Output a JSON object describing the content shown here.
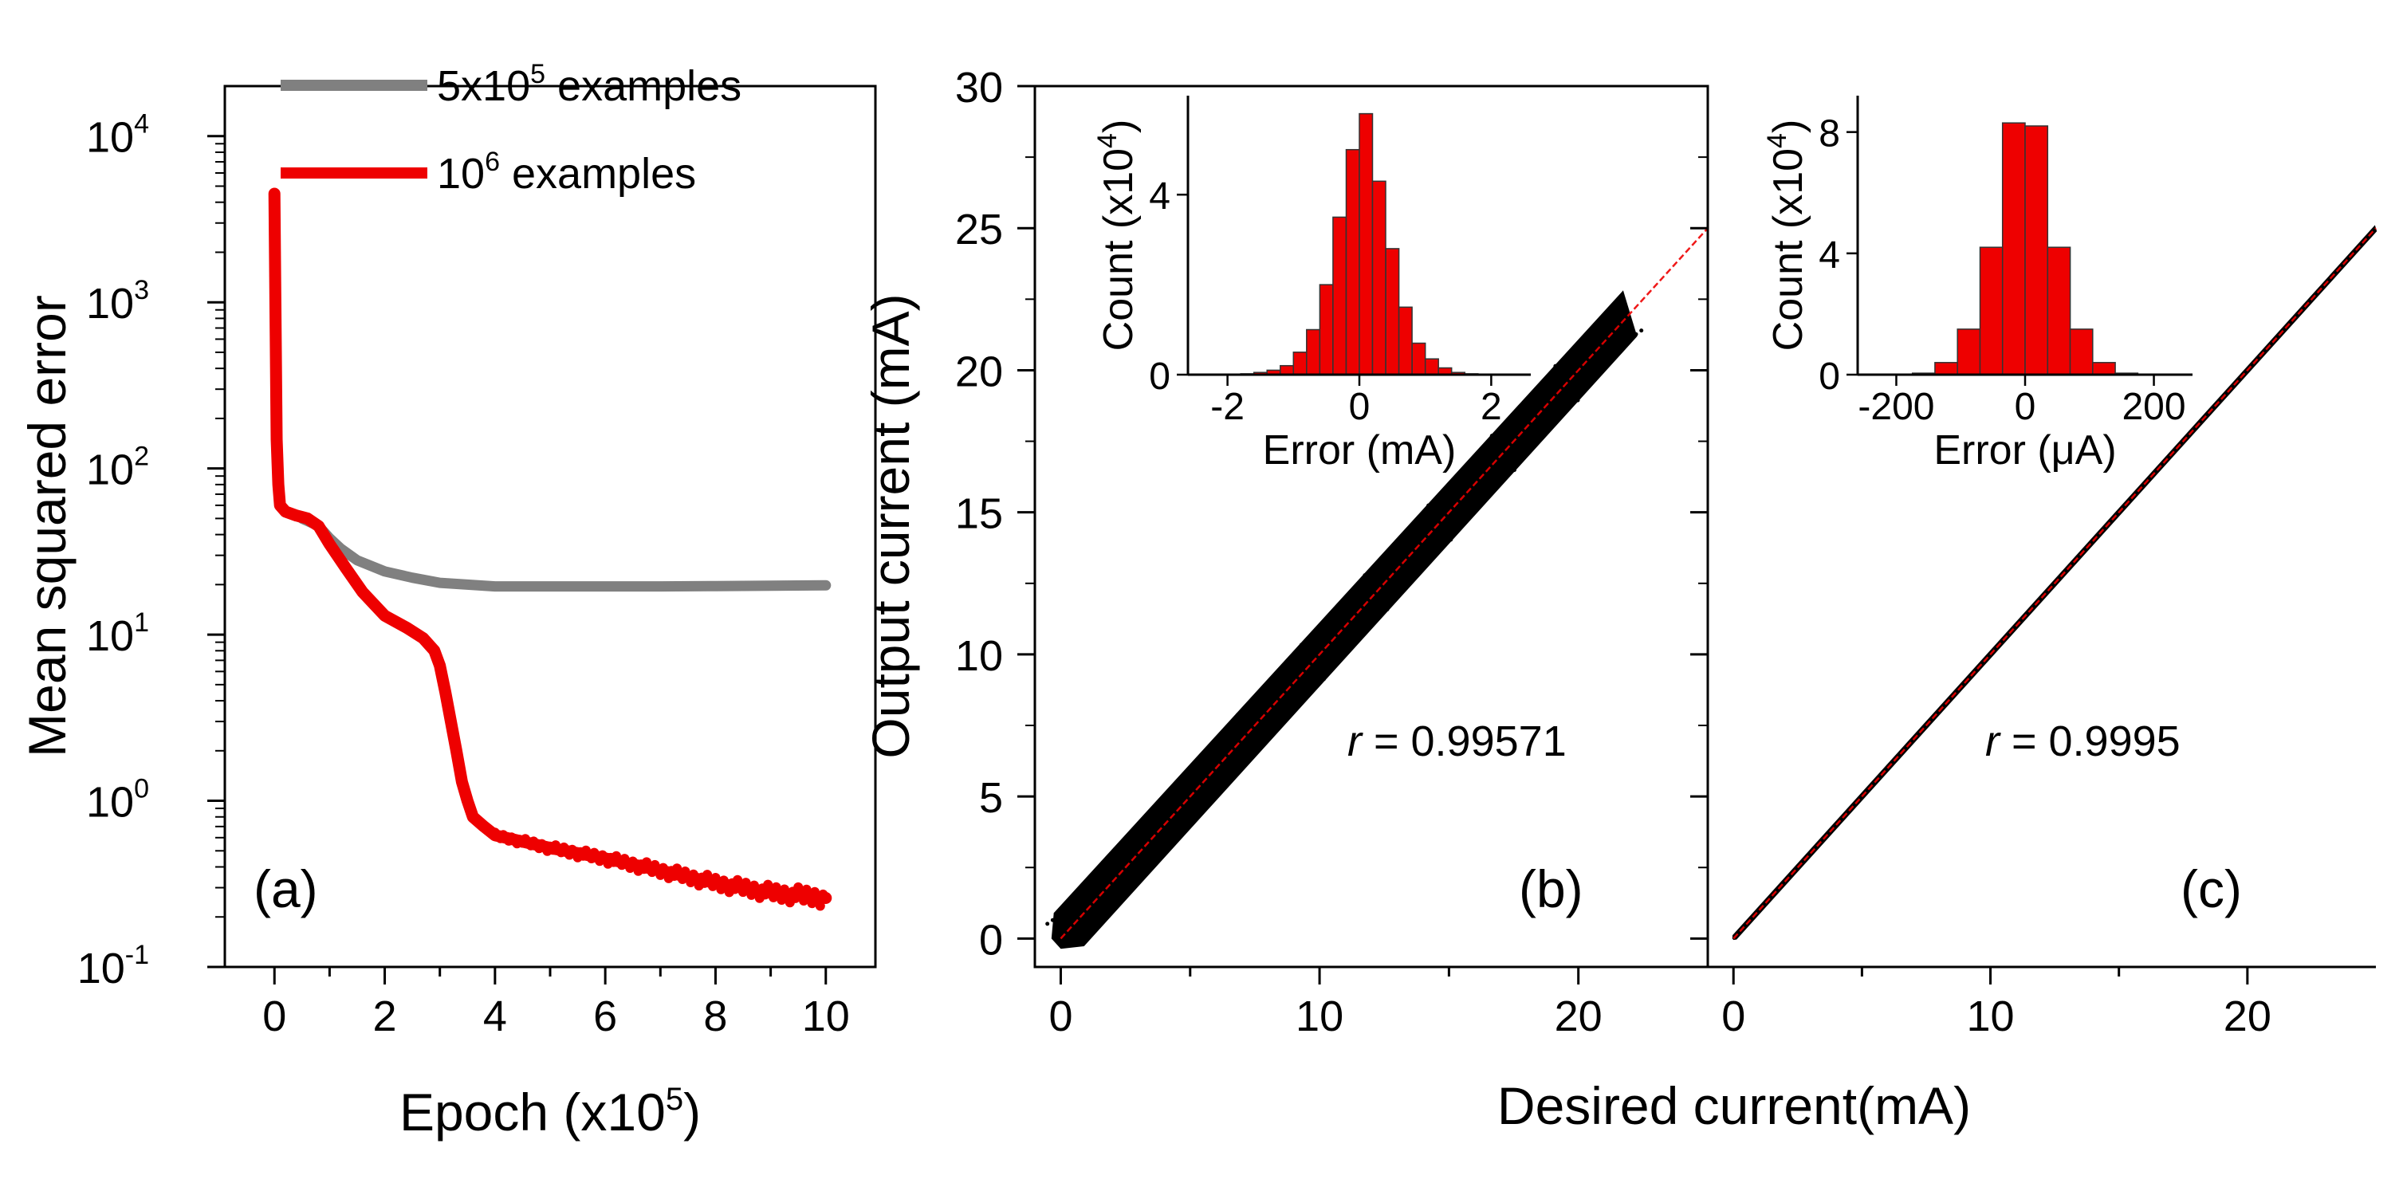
{
  "figure": {
    "background": "#ffffff",
    "axis_color": "#000000",
    "gray_series_color": "#808080",
    "red_series_color": "#ee0000",
    "scatter_color": "#000000",
    "hist_fill_color": "#ee0000",
    "hist_edge_color": "#333333"
  },
  "chart_data": [
    {
      "id": "a",
      "type": "line",
      "panel_label": "(a)",
      "title": "",
      "xlabel": "Epoch (x10",
      "xlabel_sup": "5",
      "xlabel_close": ")",
      "ylabel": "Mean squared error",
      "xlim": [
        -0.9,
        10.9
      ],
      "ylim": [
        0.1,
        20000
      ],
      "yscale": "log",
      "xticks": [
        0,
        2,
        4,
        6,
        8,
        10
      ],
      "xtick_labels": [
        "0",
        "2",
        "4",
        "6",
        "8",
        "10"
      ],
      "yticks": [
        0.1,
        1,
        10,
        100,
        1000,
        10000
      ],
      "ytick_labels": [
        {
          "base": "10",
          "exp": "-1"
        },
        {
          "base": "10",
          "exp": "0"
        },
        {
          "base": "10",
          "exp": "1"
        },
        {
          "base": "10",
          "exp": "2"
        },
        {
          "base": "10",
          "exp": "3"
        },
        {
          "base": "10",
          "exp": "4"
        }
      ],
      "legend": [
        {
          "text": "5x10",
          "sup": "5",
          "suffix": " examples",
          "color": "#808080"
        },
        {
          "text": "10",
          "sup": "6",
          "suffix": " examples",
          "color": "#ee0000"
        }
      ],
      "series": [
        {
          "name": "5x10^5 examples",
          "color": "#808080",
          "x": [
            0.5,
            0.8,
            1.0,
            1.2,
            1.5,
            2.0,
            2.5,
            3.0,
            3.5,
            4.0,
            5.0,
            6.0,
            7.0,
            8.0,
            9.0,
            10.0
          ],
          "y": [
            50,
            45,
            38,
            33,
            28,
            24,
            22,
            20.5,
            20,
            19.5,
            19.5,
            19.5,
            19.5,
            19.6,
            19.7,
            19.8
          ]
        },
        {
          "name": "10^6 examples",
          "color": "#ee0000",
          "x": [
            0.0,
            0.02,
            0.04,
            0.07,
            0.1,
            0.2,
            0.4,
            0.6,
            0.8,
            1.0,
            1.3,
            1.6,
            2.0,
            2.4,
            2.7,
            2.9,
            3.0,
            3.1,
            3.2,
            3.3,
            3.4,
            3.5,
            3.6,
            3.8,
            4.0,
            5.0,
            6.0,
            7.0,
            8.0,
            9.0,
            10.0
          ],
          "y": [
            4500,
            800,
            150,
            80,
            60,
            55,
            52,
            50,
            45,
            35,
            25,
            18,
            13,
            11,
            9.5,
            8,
            6.5,
            4.5,
            3,
            2,
            1.3,
            1.0,
            0.8,
            0.7,
            0.62,
            0.52,
            0.45,
            0.38,
            0.32,
            0.28,
            0.26
          ]
        }
      ]
    },
    {
      "id": "b",
      "type": "scatter",
      "panel_label": "(b)",
      "ylabel": "Output current (mA)",
      "xlim": [
        -1,
        25
      ],
      "ylim": [
        -1,
        30
      ],
      "xticks": [
        0,
        10,
        20
      ],
      "xtick_labels": [
        "0",
        "10",
        "20"
      ],
      "yticks": [
        0,
        5,
        10,
        15,
        20,
        25,
        30
      ],
      "ytick_labels": [
        "0",
        "5",
        "10",
        "15",
        "20",
        "25",
        "30"
      ],
      "scatter_band": {
        "x_start": 0,
        "x_end": 22,
        "half_width": 0.9
      },
      "fit_line": {
        "x": [
          0,
          25
        ],
        "y": [
          0,
          25
        ],
        "color": "#ee0000"
      },
      "annotation": {
        "r_label": "r",
        "r_value": " = 0.99571"
      },
      "inset": {
        "type": "histogram",
        "xlabel": "Error (mA)",
        "ylabel": "Count (x10",
        "ylabel_sup": "4",
        "ylabel_close": ")",
        "xlim": [
          -2.6,
          2.6
        ],
        "ylim": [
          0,
          6.2
        ],
        "xticks": [
          -2,
          0,
          2
        ],
        "xtick_labels": [
          "-2",
          "0",
          "2"
        ],
        "yticks": [
          0,
          4
        ],
        "ytick_labels": [
          "0",
          "4"
        ],
        "bin_edges": [
          -1.8,
          -1.6,
          -1.4,
          -1.2,
          -1.0,
          -0.8,
          -0.6,
          -0.4,
          -0.2,
          0.0,
          0.2,
          0.4,
          0.6,
          0.8,
          1.0,
          1.2,
          1.4,
          1.6,
          1.8
        ],
        "counts": [
          0.02,
          0.05,
          0.1,
          0.2,
          0.5,
          1.0,
          2.0,
          3.5,
          5.0,
          5.8,
          4.3,
          2.8,
          1.5,
          0.7,
          0.35,
          0.15,
          0.05,
          0.02
        ]
      }
    },
    {
      "id": "c",
      "type": "scatter",
      "panel_label": "(c)",
      "xlabel": "Desired current(mA)",
      "xlim": [
        -1,
        25
      ],
      "ylim": [
        -1,
        30
      ],
      "xticks": [
        0,
        10,
        20
      ],
      "xtick_labels": [
        "0",
        "10",
        "20"
      ],
      "yticks": [
        0,
        5,
        10,
        15,
        20,
        25,
        30
      ],
      "scatter_band": {
        "x_start": 0,
        "x_end": 25,
        "half_width": 0.12
      },
      "fit_line": {
        "x": [
          0,
          25
        ],
        "y": [
          0,
          25
        ],
        "color": "#ee0000"
      },
      "annotation": {
        "r_label": "r",
        "r_value": " = 0.9995"
      },
      "inset": {
        "type": "histogram",
        "xlabel": "Error (μA)",
        "ylabel": "Count (x10",
        "ylabel_sup": "4",
        "ylabel_close": ")",
        "xlim": [
          -260,
          260
        ],
        "ylim": [
          0,
          9.2
        ],
        "xticks": [
          -200,
          0,
          200
        ],
        "xtick_labels": [
          "-200",
          "0",
          "200"
        ],
        "yticks": [
          0,
          4,
          8
        ],
        "ytick_labels": [
          "0",
          "4",
          "8"
        ],
        "bin_edges": [
          -175,
          -140,
          -105,
          -70,
          -35,
          0,
          35,
          70,
          105,
          140,
          175
        ],
        "counts": [
          0.05,
          0.4,
          1.5,
          4.2,
          8.3,
          8.2,
          4.2,
          1.5,
          0.4,
          0.05
        ]
      }
    }
  ]
}
